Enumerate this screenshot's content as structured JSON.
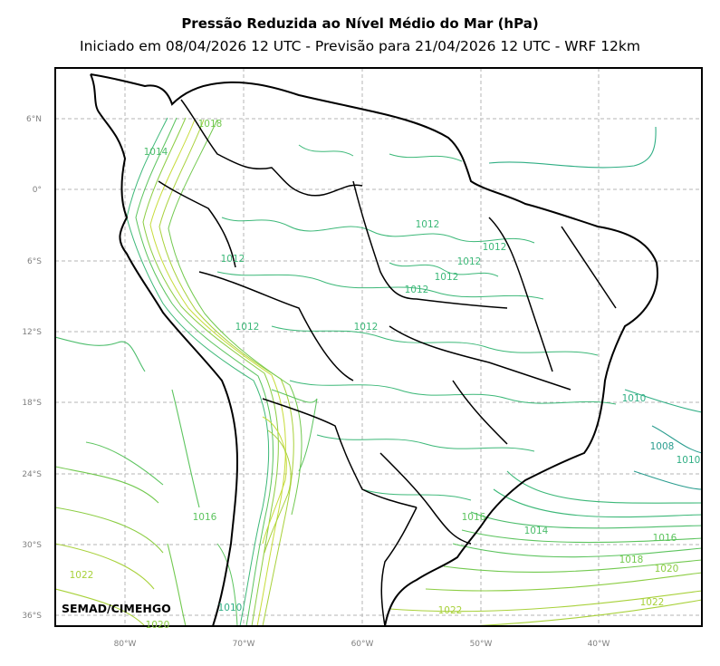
{
  "header": {
    "title": "Pressão Reduzida ao Nível Médio do Mar (hPa)",
    "subtitle": "Iniciado em 08/04/2026 12 UTC - Previsão para 21/04/2026 12 UTC - WRF 12km"
  },
  "map": {
    "credit": "SEMAD/CIMEHGO",
    "lat_ticks": [
      "6°N",
      "0°",
      "6°S",
      "12°S",
      "18°S",
      "24°S",
      "30°S",
      "36°S"
    ],
    "lon_ticks": [
      "80°W",
      "70°W",
      "60°W",
      "50°W",
      "40°W"
    ],
    "grid": true,
    "colors": {
      "c1008": "#2a9d8f",
      "c1010": "#2fae84",
      "c1012": "#3cb878",
      "c1014": "#4cbd6b",
      "c1016": "#5cc45e",
      "c1018": "#72c94f",
      "c1020": "#8ccd43",
      "c1022": "#a8d13a",
      "andes": "#c7dc3b",
      "border": "#000000"
    },
    "contour_labels": [
      {
        "text": "1012",
        "color": "#3cb878"
      },
      {
        "text": "1012",
        "color": "#3cb878"
      },
      {
        "text": "1012",
        "color": "#3cb878"
      },
      {
        "text": "1012",
        "color": "#3cb878"
      },
      {
        "text": "1012",
        "color": "#3cb878"
      },
      {
        "text": "1012",
        "color": "#3cb878"
      },
      {
        "text": "1012",
        "color": "#3cb878"
      },
      {
        "text": "1012",
        "color": "#3cb878"
      },
      {
        "text": "1010",
        "color": "#2fae84"
      },
      {
        "text": "1008",
        "color": "#2a9d8f"
      },
      {
        "text": "1010",
        "color": "#2fae84"
      },
      {
        "text": "1016",
        "color": "#5cc45e"
      },
      {
        "text": "1014",
        "color": "#4cbd6b"
      },
      {
        "text": "1016",
        "color": "#5cc45e"
      },
      {
        "text": "1016",
        "color": "#5cc45e"
      },
      {
        "text": "1018",
        "color": "#72c94f"
      },
      {
        "text": "1020",
        "color": "#8ccd43"
      },
      {
        "text": "1022",
        "color": "#a8d13a"
      },
      {
        "text": "1022",
        "color": "#a8d13a"
      },
      {
        "text": "1022",
        "color": "#a8d13a"
      },
      {
        "text": "1020",
        "color": "#8ccd43"
      },
      {
        "text": "1010",
        "color": "#2fae84"
      },
      {
        "text": "1018",
        "color": "#72c94f"
      },
      {
        "text": "1014",
        "color": "#4cbd6b"
      }
    ]
  }
}
